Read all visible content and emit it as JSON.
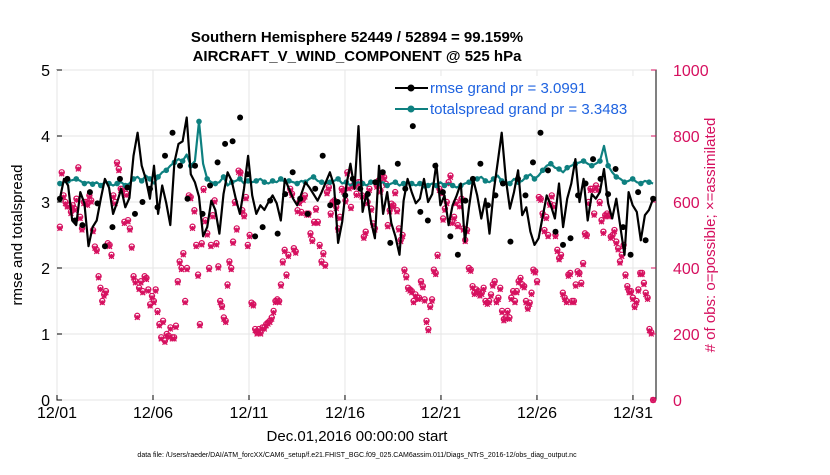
{
  "chart_data": {
    "type": "line",
    "title_line1": "Southern Hemisphere 52449 / 52894 = 99.159%",
    "title_line2": "AIRCRAFT_V_WIND_COMPONENT @ 525 hPa",
    "xlabel": "Dec.01,2016 00:00:00 start",
    "ylabel_left": "rmse and totalspread",
    "ylabel_right": "# of obs: o=possible; ×=assimilated",
    "footer": "data file: /Users/raeder/DAI/ATM_forcXX/CAM6_setup/f.e21.FHIST_BGC.f09_025.CAM6assim.011/Diags_NTrS_2016-12/obs_diag_output.nc",
    "xlim": [
      0,
      31.2
    ],
    "ylim_left": [
      0,
      5
    ],
    "ylim_right": [
      0,
      1000
    ],
    "x_tick_values": [
      0,
      5,
      10,
      15,
      20,
      25,
      30
    ],
    "x_tick_labels": [
      "12/01",
      "12/06",
      "12/11",
      "12/16",
      "12/21",
      "12/26",
      "12/31"
    ],
    "y_left_ticks": [
      "0",
      "1",
      "2",
      "3",
      "4",
      "5"
    ],
    "y_right_ticks": [
      "0",
      "200",
      "400",
      "600",
      "800",
      "1000"
    ],
    "colors": {
      "rmse": "#000000",
      "spread": "#0e8080",
      "obs": "#d6105f",
      "legend_text": "#1f63e0"
    },
    "series": [
      {
        "name": "rmse",
        "legend": "rmse grand pr = 3.0991",
        "axis": "left",
        "values": [
          3.05,
          3.35,
          3.25,
          2.72,
          2.65,
          3.15,
          2.98,
          2.33,
          2.62,
          2.72,
          3.05,
          3.35,
          3.22,
          2.82,
          3.0,
          3.2,
          2.92,
          3.06,
          3.7,
          4.05,
          3.55,
          3.35,
          3.05,
          3.55,
          2.82,
          3.25,
          2.98,
          2.65,
          3.6,
          3.88,
          3.92,
          4.28,
          3.42,
          3.3,
          3.08,
          2.48,
          2.62,
          3.02,
          2.88,
          2.52,
          3.12,
          3.45,
          3.32,
          3.05,
          2.82,
          3.2,
          3.7,
          3.1,
          2.82,
          2.95,
          2.88,
          3.0,
          3.1,
          2.98,
          2.72,
          3.35,
          3.2,
          3.05,
          2.95,
          3.12,
          3.3,
          3.22,
          3.12,
          3.02,
          3.15,
          3.3,
          3.45,
          3.25,
          2.38,
          2.7,
          3.25,
          3.58,
          3.2,
          4.15,
          2.85,
          3.15,
          2.72,
          2.45,
          3.55,
          2.82,
          3.15,
          2.68,
          2.48,
          2.2,
          3.02,
          3.35,
          3.15,
          2.98,
          3.05,
          3.35,
          3.0,
          3.12,
          3.58,
          2.95,
          3.1,
          2.65,
          2.95,
          3.1,
          3.28,
          2.4,
          2.92,
          3.35,
          3.1,
          2.75,
          3.05,
          2.52,
          3.15,
          3.6,
          4.05,
          3.35,
          2.9,
          3.15,
          3.48,
          2.8,
          2.92,
          2.55,
          2.35,
          2.45,
          2.78,
          3.1,
          2.95,
          2.75,
          3.28,
          2.62,
          3.05,
          3.28,
          3.65,
          3.0,
          3.35,
          2.72,
          3.12,
          3.05,
          3.15,
          3.5,
          2.98,
          2.75,
          3.05,
          2.62,
          2.2,
          3.15,
          2.95,
          2.85,
          2.42,
          2.8,
          2.88,
          3.05
        ],
        "markers": [
          3.05,
          3.35,
          2.72,
          2.65,
          3.15,
          2.98,
          2.33,
          2.62,
          3.35,
          3.22,
          2.82,
          3.0,
          3.2,
          2.92,
          3.7,
          4.05,
          3.55,
          3.05,
          3.55,
          2.82,
          3.25,
          3.6,
          3.88,
          3.92,
          4.28,
          3.42,
          2.48,
          2.62,
          3.02,
          2.52,
          3.12,
          3.45,
          3.05,
          2.82,
          3.2,
          3.7,
          2.95,
          3.0,
          3.1,
          3.35,
          3.2,
          3.12,
          3.3,
          3.45,
          2.38,
          3.58,
          3.2,
          4.15,
          2.85,
          2.72,
          3.55,
          3.15,
          2.48,
          2.2,
          3.02,
          3.35,
          3.58,
          2.95,
          3.1,
          3.28,
          2.4,
          3.35,
          3.1,
          3.6,
          4.05,
          3.48,
          2.55,
          2.35,
          2.45,
          3.1,
          3.28,
          3.65,
          3.35,
          3.12,
          3.5,
          2.62,
          2.2,
          3.15,
          2.42,
          3.05
        ]
      },
      {
        "name": "totalspread",
        "legend": "totalspread grand pr = 3.3483",
        "axis": "left",
        "values": [
          3.28,
          3.3,
          3.32,
          3.33,
          3.35,
          3.32,
          3.28,
          3.3,
          3.27,
          3.3,
          3.25,
          3.3,
          3.28,
          3.25,
          3.28,
          3.3,
          3.25,
          3.28,
          3.35,
          3.38,
          3.32,
          3.4,
          3.35,
          3.28,
          3.38,
          3.45,
          3.48,
          3.55,
          3.6,
          3.65,
          3.62,
          3.72,
          3.55,
          3.62,
          4.22,
          3.58,
          3.35,
          3.3,
          3.28,
          3.3,
          3.38,
          3.25,
          3.3,
          3.32,
          3.35,
          3.28,
          3.32,
          3.3,
          3.32,
          3.35,
          3.3,
          3.28,
          3.32,
          3.3,
          3.35,
          3.3,
          3.32,
          3.3,
          3.28,
          3.32,
          3.3,
          3.35,
          3.38,
          3.32,
          3.3,
          3.28,
          3.3,
          3.32,
          3.35,
          3.28,
          3.3,
          3.25,
          3.28,
          3.3,
          3.28,
          3.25,
          3.3,
          3.32,
          3.28,
          3.3,
          3.25,
          3.28,
          3.3,
          3.25,
          3.28,
          3.3,
          3.28,
          3.25,
          3.28,
          3.22,
          3.25,
          3.28,
          3.25,
          3.3,
          3.25,
          3.28,
          3.25,
          3.22,
          3.25,
          3.28,
          3.3,
          3.32,
          3.35,
          3.38,
          3.32,
          3.3,
          3.35,
          3.4,
          3.32,
          3.3,
          3.28,
          3.35,
          3.3,
          3.32,
          3.38,
          3.42,
          3.35,
          3.4,
          3.48,
          3.55,
          3.58,
          3.52,
          3.5,
          3.45,
          3.52,
          3.55,
          3.58,
          3.6,
          3.62,
          3.58,
          3.55,
          3.58,
          3.62,
          3.85,
          3.55,
          3.45,
          3.38,
          3.35,
          3.3,
          3.32,
          3.35,
          3.3,
          3.28,
          3.32,
          3.3,
          3.28
        ]
      },
      {
        "name": "obs_possible",
        "axis": "right",
        "values": [
          525,
          690,
          620,
          600,
          590,
          590,
          570,
          590,
          580,
          610,
          705,
          555,
          520,
          600,
          600,
          595,
          620,
          605,
          515,
          465,
          455,
          375,
          340,
          300,
          320,
          330,
          475,
          470,
          440,
          620,
          600,
          720,
          700,
          640,
          640,
          540,
          625,
          545,
          520,
          465,
          375,
          360,
          255,
          340,
          360,
          330,
          375,
          370,
          335,
          290,
          315,
          300,
          335,
          270,
          230,
          190,
          240,
          180,
          200,
          195,
          220,
          190,
          190,
          225,
          360,
          420,
          400,
          445,
          300,
          400,
          620,
          615,
          525,
          575,
          470,
          380,
          230,
          475,
          640,
          545,
          505,
          400,
          470,
          560,
          605,
          475,
          405,
          300,
          285,
          250,
          240,
          350,
          420,
          400,
          480,
          600,
          520,
          695,
          690,
          575,
          560,
          615,
          470,
          500,
          295,
          290,
          215,
          205,
          215,
          205,
          220,
          220,
          230,
          235,
          240,
          250,
          270,
          300,
          305,
          300,
          350,
          420,
          455,
          380,
          440,
          640,
          625,
          460,
          450,
          575,
          600,
          570,
          610,
          620,
          565,
          565,
          505,
          485,
          540,
          580,
          540,
          470,
          420,
          445,
          410,
          630,
          645,
          565,
          600,
          605,
          585,
          520,
          555,
          640,
          635,
          605,
          690,
          645,
          585,
          650,
          650,
          625,
          660,
          660,
          620,
          495,
          510,
          600,
          640,
          580,
          535,
          520,
          650,
          665,
          635,
          685,
          675,
          655,
          530,
          575,
          595,
          590,
          630,
          575,
          520,
          485,
          500,
          395,
          375,
          340,
          335,
          330,
          300,
          320,
          310,
          310,
          360,
          345,
          305,
          240,
          215,
          285,
          305,
          395,
          385,
          440,
          640,
          630,
          550,
          580,
          600,
          660,
          680,
          540,
          555,
          600,
          530,
          590,
          610,
          520,
          485,
          515,
          400,
          395,
          345,
          325,
          335,
          330,
          320,
          325,
          340,
          300,
          295,
          300,
          320,
          350,
          360,
          300,
          310,
          340,
          270,
          245,
          250,
          270,
          250,
          310,
          330,
          300,
          330,
          360,
          370,
          350,
          345,
          300,
          280,
          295,
          325,
          395,
          390,
          360,
          615,
          610,
          565,
          515,
          555,
          500,
          595,
          620,
          590,
          500,
          455,
          430,
          440,
          325,
          310,
          300,
          380,
          385,
          300,
          300,
          350,
          390,
          385,
          355,
          415,
          505,
          500,
          600,
          640,
          640,
          565,
          650,
          640,
          600,
          545,
          510,
          560,
          565,
          560,
          495,
          500,
          515,
          480,
          460,
          420,
          440,
          470,
          380,
          345,
          330,
          330,
          310,
          285,
          300,
          335,
          385,
          385,
          355,
          325,
          310,
          215,
          205,
          0
        ]
      },
      {
        "name": "obs_assimilated",
        "axis": "right",
        "values": [
          520,
          685,
          615,
          595,
          585,
          585,
          565,
          585,
          575,
          605,
          700,
          550,
          515,
          595,
          595,
          590,
          615,
          600,
          510,
          460,
          450,
          370,
          335,
          295,
          315,
          325,
          470,
          465,
          435,
          615,
          595,
          715,
          695,
          635,
          635,
          535,
          620,
          540,
          515,
          460,
          370,
          355,
          250,
          335,
          355,
          325,
          370,
          365,
          330,
          285,
          310,
          295,
          330,
          265,
          225,
          185,
          235,
          175,
          195,
          190,
          215,
          185,
          185,
          220,
          355,
          415,
          395,
          440,
          295,
          395,
          615,
          610,
          520,
          570,
          465,
          375,
          225,
          470,
          635,
          540,
          500,
          395,
          465,
          555,
          600,
          470,
          400,
          295,
          280,
          245,
          235,
          345,
          415,
          395,
          475,
          595,
          515,
          690,
          685,
          570,
          555,
          610,
          465,
          495,
          290,
          285,
          210,
          200,
          210,
          200,
          215,
          215,
          225,
          230,
          235,
          245,
          265,
          295,
          300,
          295,
          345,
          415,
          450,
          375,
          435,
          635,
          620,
          455,
          445,
          570,
          595,
          565,
          605,
          615,
          560,
          560,
          500,
          480,
          535,
          575,
          535,
          465,
          415,
          440,
          405,
          625,
          640,
          560,
          595,
          600,
          580,
          515,
          550,
          635,
          630,
          600,
          685,
          640,
          580,
          645,
          645,
          620,
          655,
          655,
          615,
          490,
          505,
          595,
          635,
          575,
          530,
          515,
          645,
          660,
          630,
          680,
          670,
          650,
          525,
          570,
          590,
          585,
          625,
          570,
          515,
          480,
          495,
          390,
          370,
          335,
          330,
          325,
          295,
          315,
          305,
          305,
          355,
          340,
          300,
          235,
          210,
          280,
          300,
          390,
          380,
          435,
          635,
          625,
          545,
          575,
          595,
          655,
          675,
          535,
          550,
          595,
          525,
          585,
          605,
          515,
          480,
          510,
          395,
          390,
          340,
          320,
          330,
          325,
          315,
          320,
          335,
          295,
          290,
          295,
          315,
          345,
          355,
          295,
          305,
          335,
          265,
          240,
          245,
          265,
          245,
          305,
          325,
          295,
          325,
          355,
          365,
          345,
          340,
          295,
          275,
          290,
          320,
          390,
          385,
          355,
          610,
          605,
          560,
          510,
          550,
          495,
          590,
          615,
          585,
          495,
          450,
          425,
          435,
          320,
          305,
          295,
          375,
          380,
          295,
          295,
          345,
          385,
          380,
          350,
          410,
          500,
          495,
          595,
          635,
          635,
          560,
          645,
          635,
          595,
          540,
          505,
          555,
          560,
          555,
          490,
          495,
          510,
          475,
          455,
          415,
          435,
          465,
          375,
          340,
          325,
          325,
          305,
          280,
          295,
          330,
          380,
          380,
          350,
          320,
          305,
          210,
          200,
          0
        ]
      }
    ]
  }
}
